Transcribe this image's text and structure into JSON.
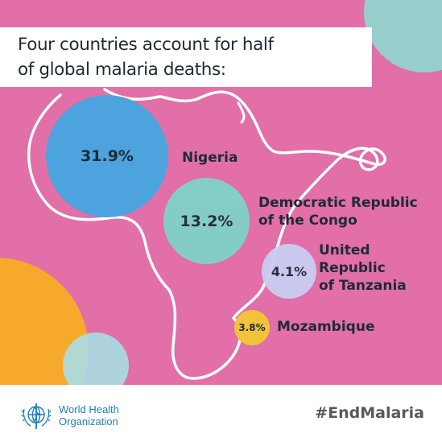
{
  "title": {
    "line1": "Four countries account for half",
    "line2": "of global malaria deaths:"
  },
  "countries": [
    {
      "value": "31.9%",
      "name_lines": [
        "Nigeria"
      ],
      "color": "#4da3dd"
    },
    {
      "value": "13.2%",
      "name_lines": [
        "Democratic Republic",
        "of the Congo"
      ],
      "color": "#7fd3c7"
    },
    {
      "value": "4.1%",
      "name_lines": [
        "United",
        "Republic",
        "of Tanzania"
      ],
      "color": "#c9cdf0"
    },
    {
      "value": "3.8%",
      "name_lines": [
        "Mozambique"
      ],
      "color": "#f2c33a"
    }
  ],
  "footer": {
    "org_line1": "World Health",
    "org_line2": "Organization",
    "hashtag": "#EndMalaria",
    "org_color": "#1f80c2"
  },
  "colors": {
    "background": "#e26fa7",
    "decor_teal": "#8fd8cf",
    "decor_orange": "#f7a92b",
    "decor_light_blue": "#a8dde4"
  }
}
